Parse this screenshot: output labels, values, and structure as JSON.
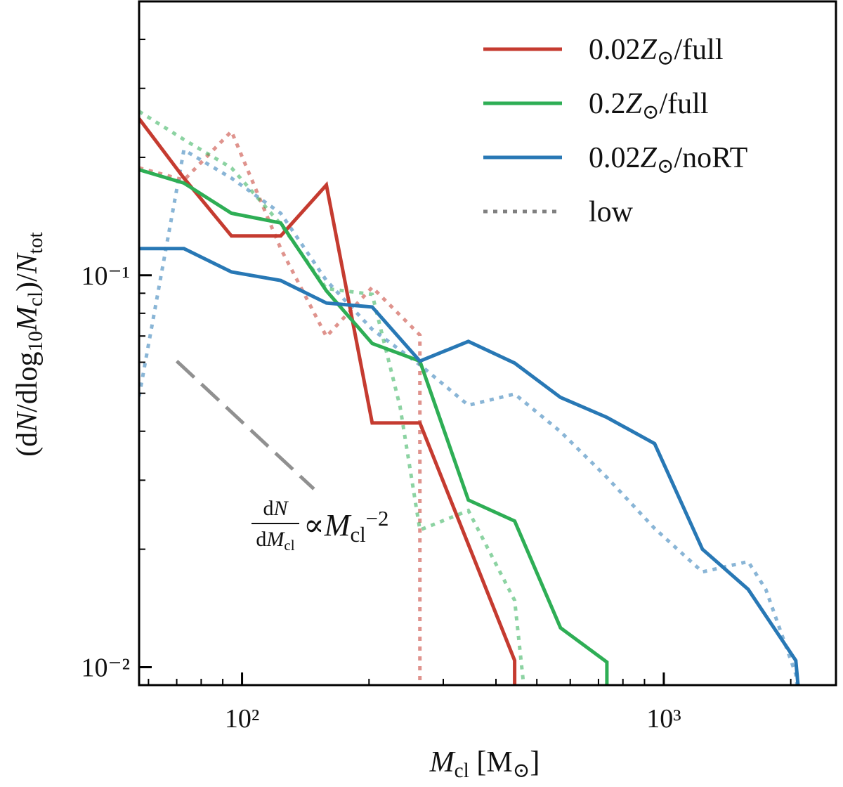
{
  "chart_data": {
    "type": "line",
    "log_x": true,
    "log_y": true,
    "xlim": [
      57,
      2560
    ],
    "ylim": [
      0.009,
      0.5
    ],
    "xticks": [
      {
        "value": 100,
        "label": "10²"
      },
      {
        "value": 1000,
        "label": "10³"
      }
    ],
    "yticks": [
      {
        "value": 0.01,
        "label": "10⁻²"
      },
      {
        "value": 0.1,
        "label": "10⁻¹"
      }
    ],
    "xminorticks": [
      60,
      70,
      80,
      90,
      200,
      300,
      400,
      500,
      600,
      700,
      800,
      900,
      2000
    ],
    "yminorticks": [
      0.02,
      0.03,
      0.04,
      0.05,
      0.06,
      0.07,
      0.08,
      0.09,
      0.2,
      0.3,
      0.4,
      0.5
    ],
    "xlabel": [
      {
        "text": "M",
        "italic": true
      },
      {
        "text": "cl",
        "shift": "sub"
      },
      {
        "text": " [M"
      },
      {
        "text": "⊙",
        "shift": "sub"
      },
      {
        "text": "]"
      }
    ],
    "ylabel": [
      {
        "text": "(d"
      },
      {
        "text": "N",
        "italic": true
      },
      {
        "text": "/dlog"
      },
      {
        "text": "10",
        "shift": "sub"
      },
      {
        "text": "M",
        "italic": true
      },
      {
        "text": "cl",
        "shift": "sub"
      },
      {
        "text": ")/"
      },
      {
        "text": "N",
        "italic": true
      },
      {
        "text": "tot",
        "shift": "sub"
      }
    ],
    "legend": "upper right",
    "series": [
      {
        "name": [
          {
            "text": "0.02"
          },
          {
            "text": "Z",
            "italic": true
          },
          {
            "text": "⊙",
            "shift": "sub"
          },
          {
            "text": "/full"
          }
        ],
        "color": "#c53b30",
        "style": "solid",
        "alpha": 1,
        "x": [
          57,
          72.8,
          94.4,
          123.5,
          158.5,
          203.5,
          264,
          443,
          443
        ],
        "values": [
          0.251,
          0.177,
          0.126,
          0.126,
          0.17,
          0.042,
          0.042,
          0.0104,
          0
        ]
      },
      {
        "name": [
          {
            "text": "0.2"
          },
          {
            "text": "Z",
            "italic": true
          },
          {
            "text": "⊙",
            "shift": "sub"
          },
          {
            "text": "/full"
          }
        ],
        "color": "#2eae55",
        "style": "solid",
        "alpha": 1,
        "x": [
          57,
          72.8,
          94.4,
          123.5,
          158.5,
          203.5,
          264,
          344,
          443,
          569,
          733,
          733
        ],
        "values": [
          0.186,
          0.172,
          0.144,
          0.136,
          0.0913,
          0.067,
          0.0604,
          0.0267,
          0.0236,
          0.0126,
          0.0103,
          0
        ]
      },
      {
        "name": [
          {
            "text": "0.02"
          },
          {
            "text": "Z",
            "italic": true
          },
          {
            "text": "⊙",
            "shift": "sub"
          },
          {
            "text": "/noRT"
          }
        ],
        "color": "#2878b5",
        "style": "solid",
        "alpha": 1,
        "x": [
          57,
          72.8,
          94.4,
          123.5,
          158.5,
          203.5,
          264,
          344,
          443,
          569,
          733,
          951,
          1235,
          1585,
          2056,
          2110
        ],
        "values": [
          0.117,
          0.117,
          0.102,
          0.097,
          0.085,
          0.083,
          0.0604,
          0.0678,
          0.0597,
          0.0488,
          0.0434,
          0.0372,
          0.02,
          0.0158,
          0.0104,
          0
        ]
      },
      {
        "color": "#c53b30",
        "style": "dotted",
        "alpha": 0.55,
        "x": [
          57,
          72.8,
          94.4,
          123.5,
          158.5,
          203.5,
          264,
          264
        ],
        "values": [
          0.188,
          0.175,
          0.233,
          0.117,
          0.0698,
          0.0932,
          0.0704,
          0
        ]
      },
      {
        "color": "#2eae55",
        "style": "dotted",
        "alpha": 0.55,
        "x": [
          57,
          72.8,
          94.4,
          123.5,
          158.5,
          203.5,
          237,
          264,
          344,
          443,
          473
        ],
        "values": [
          0.262,
          0.222,
          0.188,
          0.135,
          0.0925,
          0.0894,
          0.0462,
          0.0224,
          0.0251,
          0.0148,
          0
        ]
      },
      {
        "color": "#2878b5",
        "style": "dotted",
        "alpha": 0.55,
        "x": [
          57,
          72.8,
          94.4,
          123.5,
          158.5,
          203.5,
          264,
          344,
          443,
          569,
          733,
          951,
          1235,
          1585,
          1745,
          2056,
          2110
        ],
        "values": [
          0.0491,
          0.209,
          0.177,
          0.144,
          0.097,
          0.0728,
          0.0591,
          0.0466,
          0.0498,
          0.0399,
          0.0305,
          0.0226,
          0.0175,
          0.0186,
          0.0158,
          0.0096,
          0
        ]
      }
    ],
    "legend_extra": {
      "name": [
        {
          "text": "low"
        }
      ],
      "color": "#808080",
      "style": "dotted"
    },
    "reference_line": {
      "x": [
        70,
        148
      ],
      "values": [
        0.0604,
        0.0285
      ],
      "color": "#909090",
      "style": "dashed"
    },
    "annotation": {
      "numerator": [
        {
          "text": "d"
        },
        {
          "text": "N",
          "italic": true
        }
      ],
      "denominator": [
        {
          "text": "d"
        },
        {
          "text": "M",
          "italic": true
        },
        {
          "text": "cl",
          "shift": "sub"
        }
      ],
      "rhs": [
        {
          "text": "∝"
        },
        {
          "text": "M",
          "italic": true
        },
        {
          "text": "cl",
          "shift": "sub"
        },
        {
          "text": "−2",
          "shift": "super"
        }
      ]
    }
  }
}
